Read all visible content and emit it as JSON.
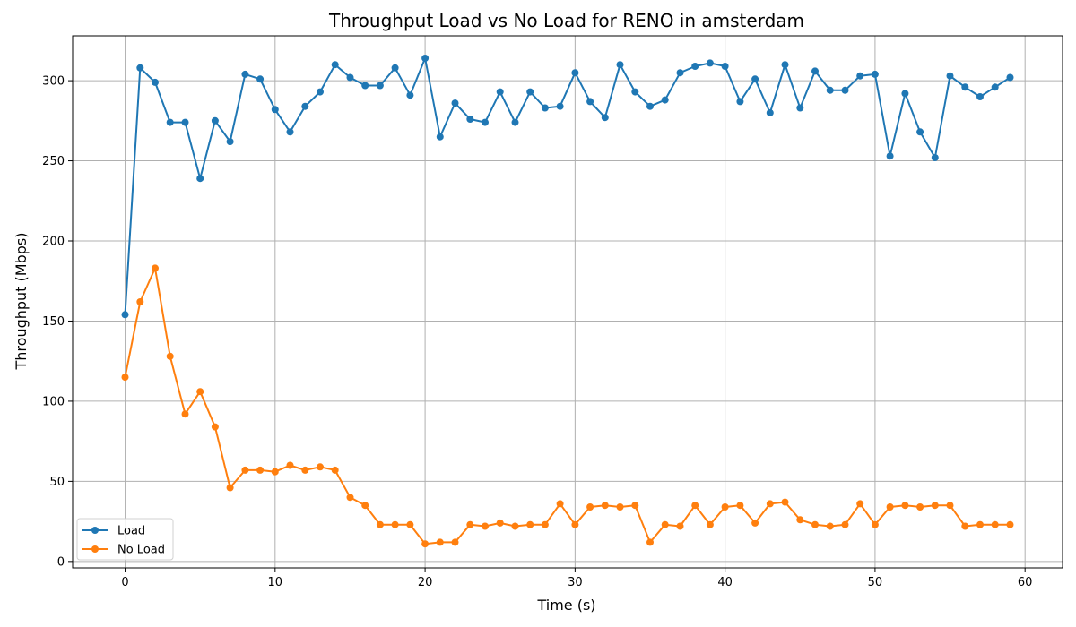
{
  "chart_data": {
    "type": "line",
    "title": "Throughput Load vs No Load for RENO in amsterdam",
    "xlabel": "Time (s)",
    "ylabel": "Throughput (Mbps)",
    "xlim": [
      -3.5,
      62.5
    ],
    "ylim": [
      -4,
      328
    ],
    "xticks": [
      0,
      10,
      20,
      30,
      40,
      50,
      60
    ],
    "yticks": [
      0,
      50,
      100,
      150,
      200,
      250,
      300
    ],
    "grid": true,
    "legend_position": "lower-left",
    "x": [
      0,
      1,
      2,
      3,
      4,
      5,
      6,
      7,
      8,
      9,
      10,
      11,
      12,
      13,
      14,
      15,
      16,
      17,
      18,
      19,
      20,
      21,
      22,
      23,
      24,
      25,
      26,
      27,
      28,
      29,
      30,
      31,
      32,
      33,
      34,
      35,
      36,
      37,
      38,
      39,
      40,
      41,
      42,
      43,
      44,
      45,
      46,
      47,
      48,
      49,
      50,
      51,
      52,
      53,
      54,
      55,
      56,
      57,
      58,
      59
    ],
    "series": [
      {
        "name": "Load",
        "color": "#1f77b4",
        "values": [
          154,
          308,
          299,
          274,
          274,
          239,
          275,
          262,
          304,
          301,
          282,
          268,
          284,
          293,
          310,
          302,
          297,
          297,
          308,
          291,
          314,
          265,
          286,
          276,
          274,
          293,
          274,
          293,
          283,
          284,
          305,
          287,
          277,
          310,
          293,
          284,
          288,
          305,
          309,
          311,
          309,
          287,
          301,
          280,
          310,
          283,
          306,
          294,
          294,
          303,
          304,
          253,
          292,
          268,
          252,
          303,
          296,
          290,
          296,
          302
        ]
      },
      {
        "name": "No Load",
        "color": "#ff7f0e",
        "values": [
          115,
          162,
          183,
          128,
          92,
          106,
          84,
          46,
          57,
          57,
          56,
          60,
          57,
          59,
          57,
          40,
          35,
          23,
          23,
          23,
          11,
          12,
          12,
          23,
          22,
          24,
          22,
          23,
          23,
          36,
          23,
          34,
          35,
          34,
          35,
          12,
          23,
          22,
          35,
          23,
          34,
          35,
          24,
          36,
          37,
          26,
          23,
          22,
          23,
          36,
          23,
          34,
          35,
          34,
          35,
          35,
          22,
          23,
          23,
          23
        ]
      }
    ]
  }
}
